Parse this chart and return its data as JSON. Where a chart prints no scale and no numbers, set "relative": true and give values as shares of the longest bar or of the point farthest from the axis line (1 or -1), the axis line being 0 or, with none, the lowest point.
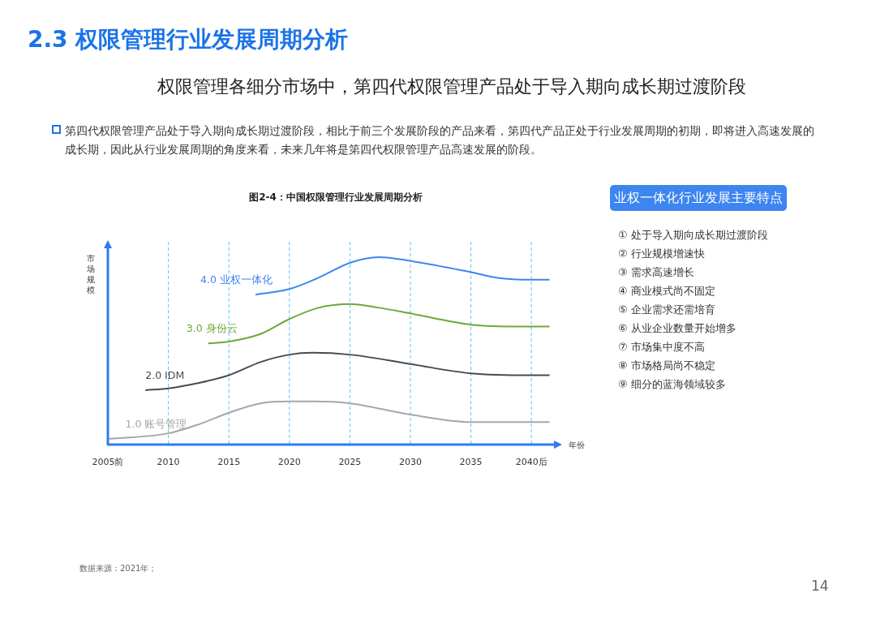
{
  "chart_data": {
    "type": "line",
    "title": "图2-4：中国权限管理行业发展周期分析",
    "xlabel": "年份",
    "ylabel": "市场规模",
    "relative": true,
    "xlim": [
      2005,
      2042
    ],
    "xticks": [
      {
        "value": 2005,
        "label": "2005前"
      },
      2010,
      2015,
      2020,
      2025,
      2030,
      2035,
      {
        "value": 2040,
        "label": "2040后"
      }
    ],
    "grid": "x",
    "legend": false,
    "marker": "none",
    "line_style": "solid",
    "series": [
      {
        "name": "4.0 业权一体化",
        "color": "#3d85f0",
        "x": [
          2017.2,
          2020,
          2022.4,
          2025,
          2027.4,
          2030,
          2035,
          2037.2,
          2040,
          2041.5
        ],
        "values": [
          0.8,
          0.83,
          0.89,
          0.97,
          1,
          0.98,
          0.92,
          0.89,
          0.88,
          0.88
        ]
      },
      {
        "name": "3.0 身份云",
        "color": "#6aaa3a",
        "x": [
          2013.3,
          2015,
          2017.6,
          2020,
          2022.4,
          2025,
          2027.4,
          2030,
          2035,
          2040,
          2041.5
        ],
        "values": [
          0.54,
          0.55,
          0.59,
          0.67,
          0.73,
          0.75,
          0.73,
          0.7,
          0.64,
          0.63,
          0.63
        ]
      },
      {
        "name": "2.0 IDM",
        "color": "#4a4a4a",
        "x": [
          2008.1,
          2010,
          2012.6,
          2015,
          2017.6,
          2020,
          2021.9,
          2025,
          2030,
          2035,
          2040,
          2041.5
        ],
        "values": [
          0.29,
          0.3,
          0.33,
          0.37,
          0.44,
          0.48,
          0.49,
          0.48,
          0.43,
          0.38,
          0.37,
          0.37
        ]
      },
      {
        "name": "1.0 账号管理",
        "color": "#a6a6a6",
        "x": [
          2005.1,
          2010,
          2012.6,
          2015,
          2017.6,
          2020,
          2021.9,
          2025,
          2030,
          2035,
          2040,
          2041.5
        ],
        "values": [
          0.03,
          0.06,
          0.11,
          0.17,
          0.22,
          0.23,
          0.23,
          0.22,
          0.16,
          0.12,
          0.12,
          0.12
        ]
      }
    ],
    "annotations": [
      "2.3 权限管理行业发展周期分析",
      "权限管理各细分市场中，第四代权限管理产品处于导入期向成长期过渡阶段",
      "第四代权限管理产品处于导入期向成长期过渡阶段，相比于前三个发展阶段的产品来看，第四代产品正处于行业发展周期的初期，即将进入高速发展的成长期，因此从行业发展周期的角度来看，未来几年将是第四代权限管理产品高速发展的阶段。",
      "业权一体化行业发展主要特点",
      "①  处于导入期向成长期过渡阶段",
      "②  行业规模增速快",
      "③  需求高速增长",
      "④  商业模式尚不固定",
      "⑤  企业需求还需培育",
      "⑥  从业企业数量开始增多",
      "⑦  市场集中度不高",
      "⑧  市场格局尚不稳定",
      "⑨  细分的蓝海领域较多",
      "数据来源：2021年；",
      "14"
    ]
  }
}
